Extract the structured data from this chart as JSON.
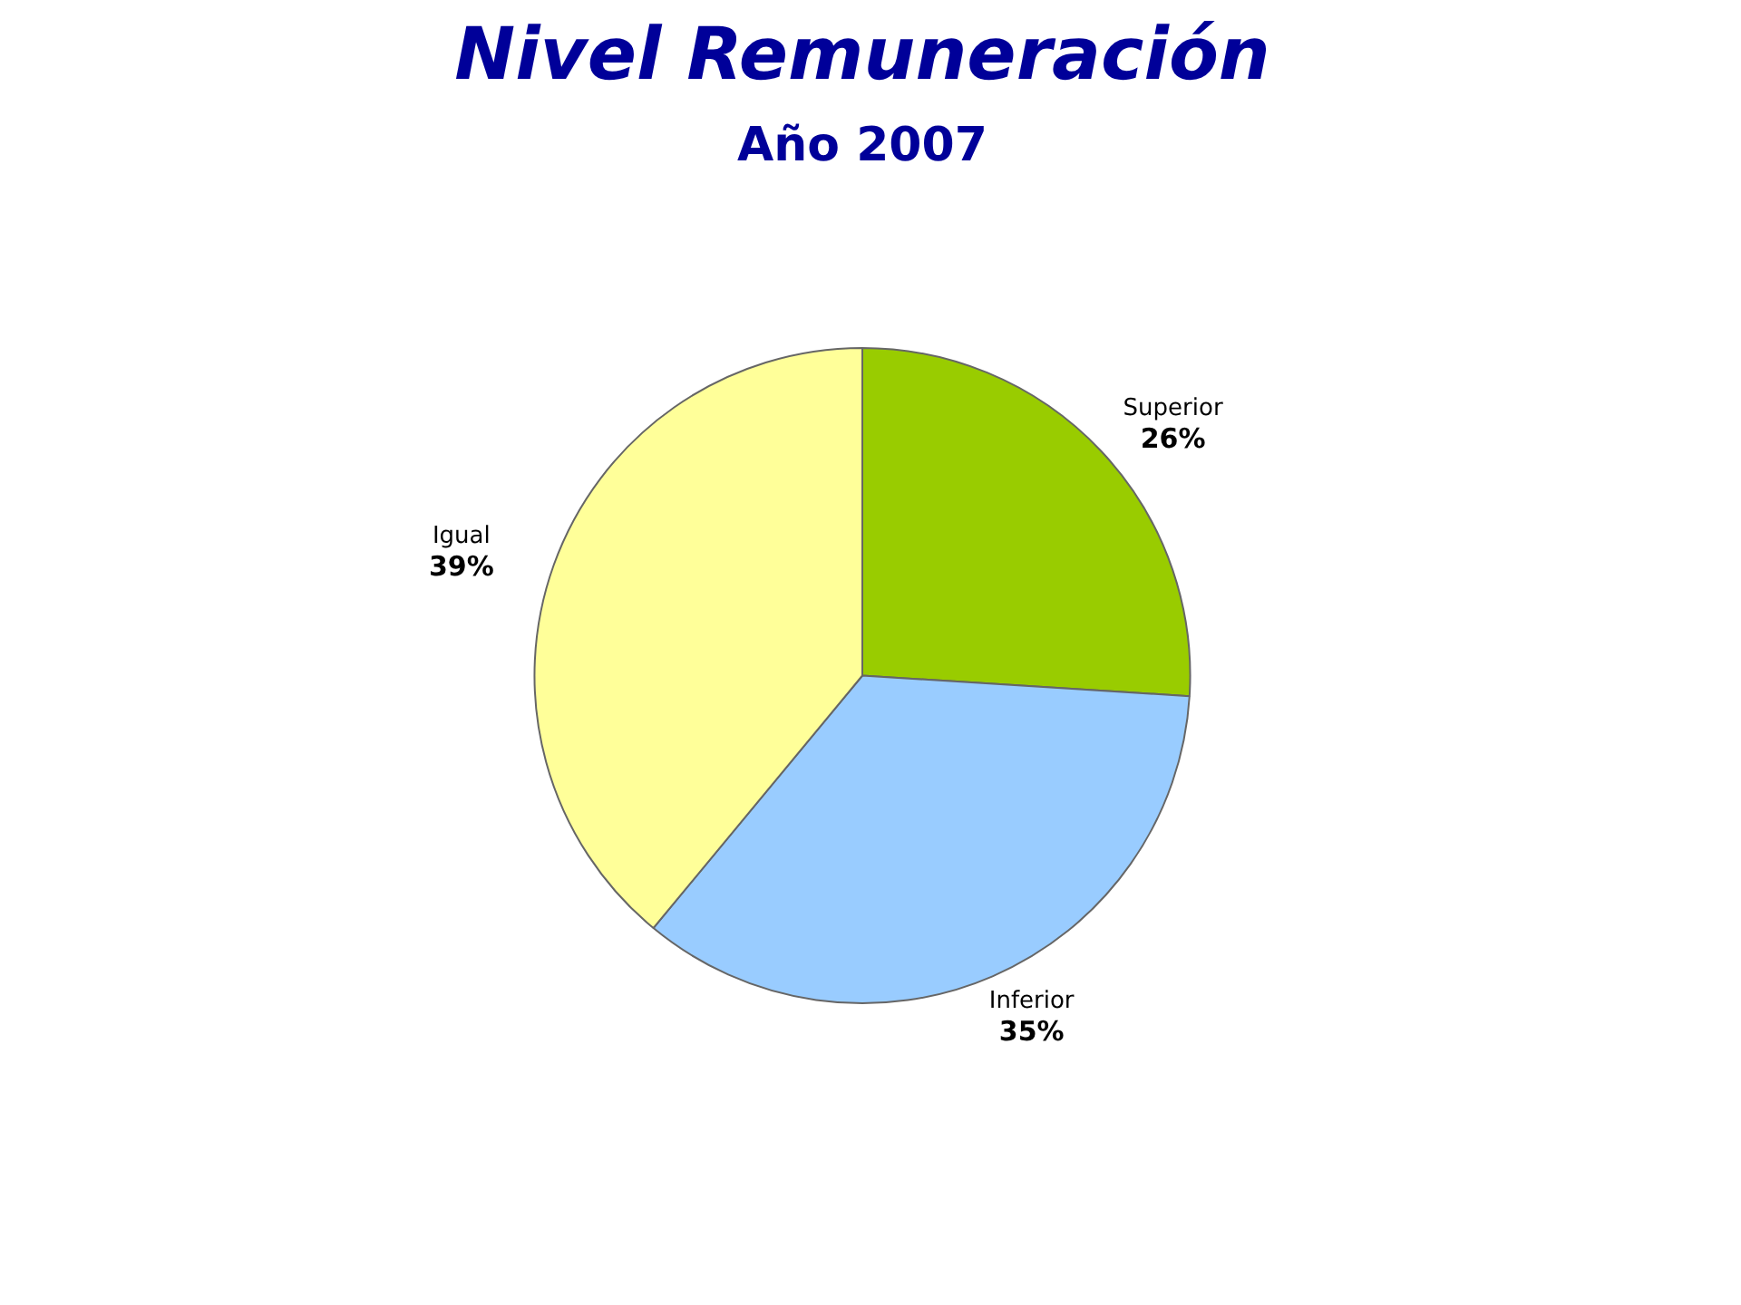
{
  "chart_data": {
    "type": "pie",
    "title": "Nivel Remuneración",
    "subtitle": "Año 2007",
    "categories": [
      "Superior",
      "Inferior",
      "Igual"
    ],
    "values": [
      26,
      35,
      39
    ],
    "colors": [
      "#99cc00",
      "#99ccff",
      "#ffff99"
    ],
    "value_labels": [
      "26%",
      "35%",
      "39%"
    ]
  }
}
